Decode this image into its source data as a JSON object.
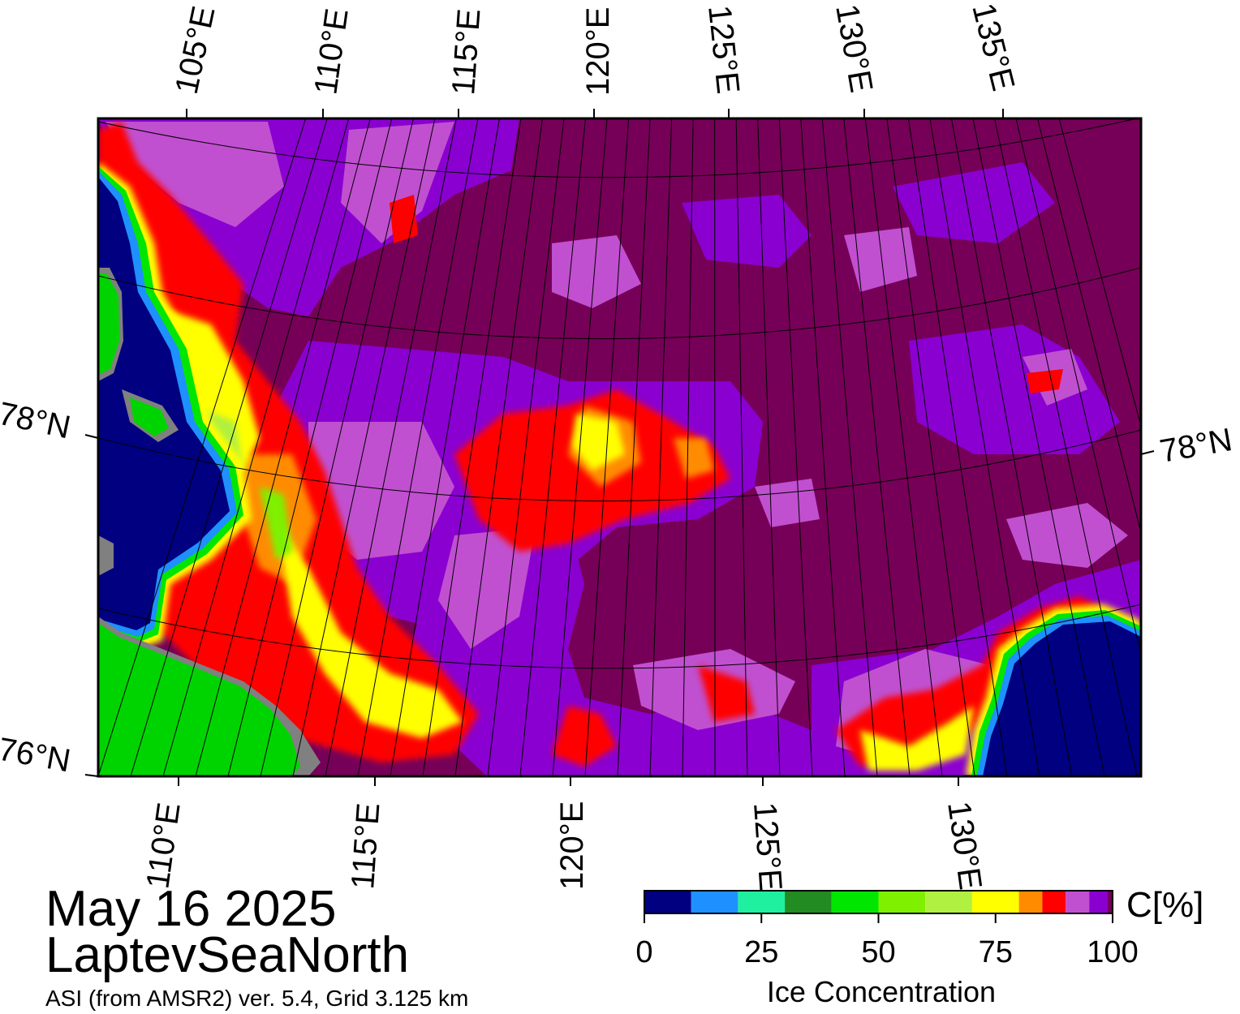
{
  "title": {
    "date": "May 16 2025",
    "region": "LaptevSeaNorth",
    "source": "ASI (from AMSR2) ver. 5.4,  Grid 3.125 km"
  },
  "colorbar": {
    "unit_label": "C[%]",
    "axis_title": "Ice Concentration",
    "tick_labels": [
      "0",
      "25",
      "50",
      "75",
      "100"
    ],
    "bins": [
      {
        "from": 0,
        "to": 10,
        "color": "#000080"
      },
      {
        "from": 10,
        "to": 20,
        "color": "#1e90ff"
      },
      {
        "from": 20,
        "to": 30,
        "color": "#1ef0a0"
      },
      {
        "from": 30,
        "to": 40,
        "color": "#228b22"
      },
      {
        "from": 40,
        "to": 50,
        "color": "#00e600"
      },
      {
        "from": 50,
        "to": 60,
        "color": "#7ef000"
      },
      {
        "from": 60,
        "to": 70,
        "color": "#b0f040"
      },
      {
        "from": 70,
        "to": 80,
        "color": "#ffff00"
      },
      {
        "from": 80,
        "to": 85,
        "color": "#ff8c00"
      },
      {
        "from": 85,
        "to": 90,
        "color": "#ff0000"
      },
      {
        "from": 90,
        "to": 95,
        "color": "#c050d0"
      },
      {
        "from": 95,
        "to": 100,
        "color": "#8a00d0"
      },
      {
        "from": 100,
        "to": 100,
        "color": "#760058"
      }
    ]
  },
  "map": {
    "top_longitude_labels": [
      "105°E",
      "110°E",
      "115°E",
      "120°E",
      "125°E",
      "130°E",
      "135°E"
    ],
    "bottom_longitude_labels": [
      "110°E",
      "115°E",
      "120°E",
      "125°E",
      "130°E"
    ],
    "latitude_labels_left": [
      "78°N",
      "76°N"
    ],
    "latitude_labels_right": [
      "78°N"
    ],
    "colors": {
      "land": "#00d400",
      "land_ice": "#808080",
      "open_water": "#000080",
      "consolidated_ice": "#760058",
      "grid": "#000000"
    }
  }
}
